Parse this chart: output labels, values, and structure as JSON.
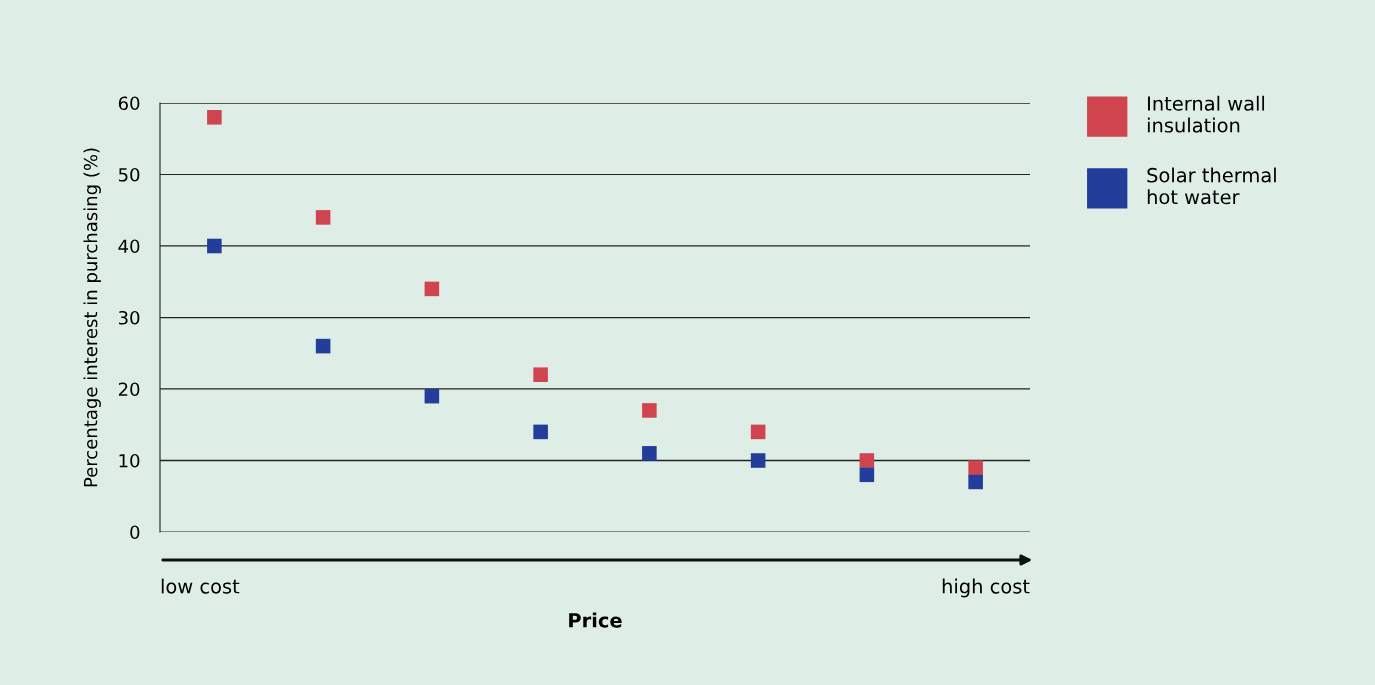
{
  "chart_data": {
    "type": "scatter",
    "xlabel": "Price",
    "ylabel": "Percentage interest in purchasing (%)",
    "categories": [
      null,
      null,
      null,
      null,
      null,
      null,
      null,
      null
    ],
    "series": [
      {
        "name": "Internal wall\ninsulation",
        "color": "#d04450",
        "values": [
          58,
          44,
          34,
          22,
          17,
          14,
          10,
          9
        ]
      },
      {
        "name": "Solar thermal\nhot water",
        "color": "#223d9a",
        "values": [
          40,
          26,
          19,
          14,
          11,
          10,
          8,
          7
        ]
      }
    ],
    "ylim": [
      0,
      60
    ],
    "yticks": [
      0,
      10,
      20,
      30,
      40,
      50,
      60
    ],
    "grid": "y",
    "legend": "right",
    "marker": "square",
    "tick_labels": "y",
    "annotations": [
      "low cost",
      "high cost"
    ]
  }
}
